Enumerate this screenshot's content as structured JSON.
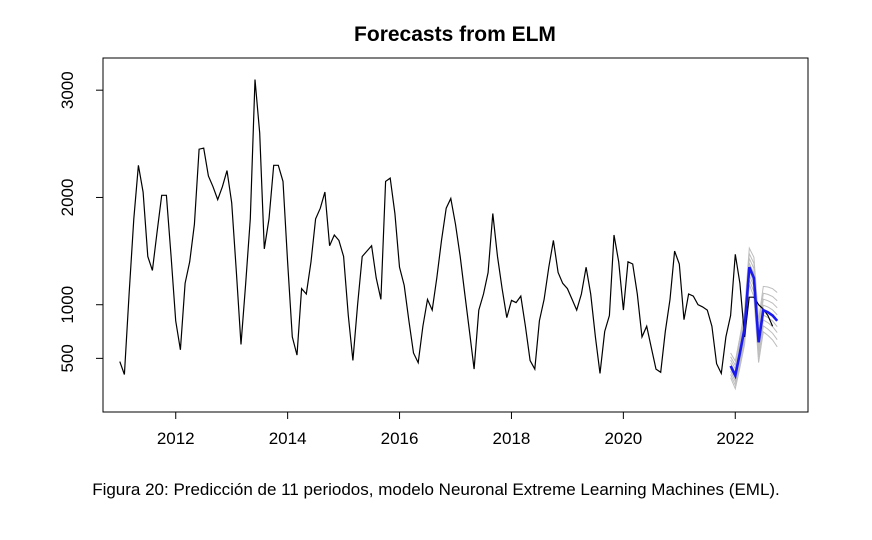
{
  "caption": "Figura 20:  Predicción de 11 periodos, modelo Neuronal Extreme Learning Machines (EML).",
  "chart_data": {
    "type": "line",
    "title": "Forecasts from ELM",
    "xlabel": "",
    "ylabel": "",
    "xlim": [
      2010.7,
      2023.3
    ],
    "ylim": [
      0,
      3300
    ],
    "x_ticks": [
      2012,
      2014,
      2016,
      2018,
      2020,
      2022
    ],
    "y_ticks": [
      500,
      1000,
      2000,
      3000
    ],
    "grid": false,
    "legend": "none",
    "colors": {
      "observed": "#000000",
      "forecast": "#1a1aee",
      "forecast_band": "#bdbdbd"
    },
    "series": [
      {
        "x_start": 2011.0,
        "step": 0.083333,
        "values": [
          470,
          350,
          1100,
          1800,
          2300,
          2050,
          1450,
          1320,
          1680,
          2020,
          2020,
          1450,
          850,
          580,
          1200,
          1400,
          1750,
          2450,
          2460,
          2200,
          2100,
          1980,
          2100,
          2250,
          1950,
          1300,
          630,
          1200,
          1800,
          3100,
          2600,
          1520,
          1800,
          2300,
          2300,
          2150,
          1400,
          700,
          530,
          1150,
          1100,
          1400,
          1800,
          1900,
          2050,
          1550,
          1650,
          1600,
          1450,
          900,
          480,
          1000,
          1450,
          1500,
          1550,
          1250,
          1050,
          2150,
          2180,
          1850,
          1350,
          1180,
          850,
          550,
          460,
          800,
          1050,
          950,
          1250,
          1600,
          1900,
          1990,
          1750,
          1450,
          1100,
          750,
          400,
          950,
          1100,
          1300,
          1850,
          1450,
          1150,
          880,
          1040,
          1020,
          1080,
          800,
          480,
          400,
          850,
          1050,
          1350,
          1600,
          1300,
          1200,
          1150,
          1050,
          950,
          1100,
          1350,
          1100,
          700,
          360,
          750,
          900,
          1650,
          1400,
          950,
          1400,
          1380,
          1100,
          700,
          800,
          600,
          400,
          370,
          750,
          1050,
          1500,
          1380,
          860,
          1100,
          1080,
          1000,
          980,
          950,
          800,
          450,
          360,
          700,
          900,
          1470,
          1200,
          700,
          1070,
          1070,
          1000,
          960,
          900,
          800
        ]
      },
      {
        "x_start": 2021.917,
        "step": 0.083333,
        "values": [
          430,
          340,
          550,
          780,
          1350,
          1250,
          650,
          950,
          930,
          900,
          850
        ]
      }
    ]
  }
}
